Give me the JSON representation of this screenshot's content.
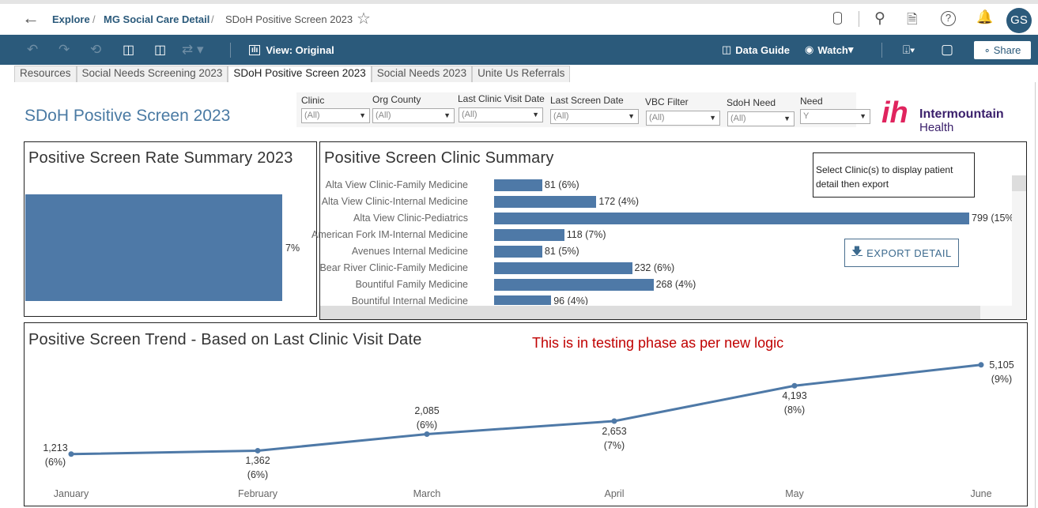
{
  "header": {
    "breadcrumb": [
      "Explore",
      "MG Social Care Detail",
      "SDoH Positive Screen 2023"
    ],
    "avatar": "GS",
    "icons": [
      "back-arrow-icon",
      "star-icon",
      "data-source-icon",
      "search-icon",
      "custom-views-icon",
      "help-icon",
      "bell-icon"
    ]
  },
  "toolbar": {
    "view_label": "View: Original",
    "data_guide": "Data Guide",
    "watch": "Watch",
    "share": "Share",
    "bg": "#2b5a7b"
  },
  "tabs": [
    "Resources",
    "Social Needs Screening 2023",
    "SDoH Positive Screen 2023",
    "Social Needs 2023",
    "Unite Us Referrals"
  ],
  "active_tab": 2,
  "dashboard": {
    "title": "SDoH Positive Screen 2023",
    "filters": [
      {
        "label": "Clinic",
        "value": "(All)"
      },
      {
        "label": "Org County",
        "value": "(All)"
      },
      {
        "label": "Last Clinic Visit Date",
        "value": "(All)"
      },
      {
        "label": "Last Screen Date",
        "value": "(All)"
      },
      {
        "label": "VBC Filter",
        "value": "(All)"
      },
      {
        "label": "SdoH Need",
        "value": "(All)"
      },
      {
        "label": "Need",
        "value": "Y"
      }
    ],
    "logo": {
      "line1": "Intermountain",
      "line2": "Health"
    },
    "rate_summary": {
      "title": "Positive Screen Rate Summary 2023",
      "value_label": "7%",
      "value": 7
    },
    "clinic_summary": {
      "title": "Positive Screen Clinic Summary",
      "note": "Select Clinic(s) to display patient detail then export",
      "export_label": "EXPORT DETAIL"
    },
    "trend": {
      "title": "Positive Screen Trend - Based on Last Clinic Visit Date",
      "note": "This is in testing phase as per new logic",
      "note_color": "#c00000"
    }
  },
  "chart_data": [
    {
      "type": "bar",
      "orientation": "horizontal",
      "categories": [
        "Alta View Clinic-Family Medicine",
        "Alta View Clinic-Internal Medicine",
        "Alta View Clinic-Pediatrics",
        "American Fork IM-Internal Medicine",
        "Avenues Internal Medicine",
        "Bear River Clinic-Family Medicine",
        "Bountiful Family Medicine",
        "Bountiful Internal Medicine"
      ],
      "values": [
        81,
        172,
        799,
        118,
        81,
        232,
        268,
        96
      ],
      "labels": [
        "81 (6%)",
        "172 (4%)",
        "799 (15%",
        "118 (7%)",
        "81 (5%)",
        "232 (6%)",
        "268 (4%)",
        "96 (4%)"
      ],
      "color": "#4e79a7"
    },
    {
      "type": "line",
      "x": [
        "January",
        "February",
        "March",
        "April",
        "May",
        "June"
      ],
      "values": [
        1213,
        1362,
        2085,
        2653,
        4193,
        5105
      ],
      "value_labels": [
        "1,213",
        "1,362",
        "2,085",
        "2,653",
        "4,193",
        "5,105"
      ],
      "pct_labels": [
        "(6%)",
        "(6%)",
        "(6%)",
        "(7%)",
        "(8%)",
        "(9%)"
      ],
      "color": "#4e79a7"
    }
  ]
}
